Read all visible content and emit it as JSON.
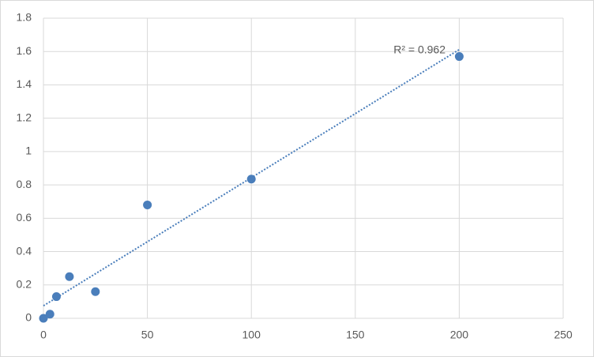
{
  "chart_data": {
    "type": "scatter",
    "series": [
      {
        "color": "#4a7ebb",
        "x": [
          0,
          3.125,
          6.25,
          12.5,
          25,
          50,
          100,
          200
        ],
        "values": [
          0,
          0.025,
          0.13,
          0.25,
          0.16,
          0.68,
          0.835,
          1.57
        ]
      }
    ],
    "trendline": "linear",
    "annotation": "R² = 0.962",
    "xlim": [
      0,
      250
    ],
    "xticks": [
      0,
      50,
      100,
      150,
      200,
      250
    ],
    "ylim": [
      0,
      1.8
    ],
    "yticks": [
      0,
      0.2,
      0.4,
      0.6,
      0.8,
      1,
      1.2,
      1.4,
      1.6,
      1.8
    ],
    "grid": true
  }
}
